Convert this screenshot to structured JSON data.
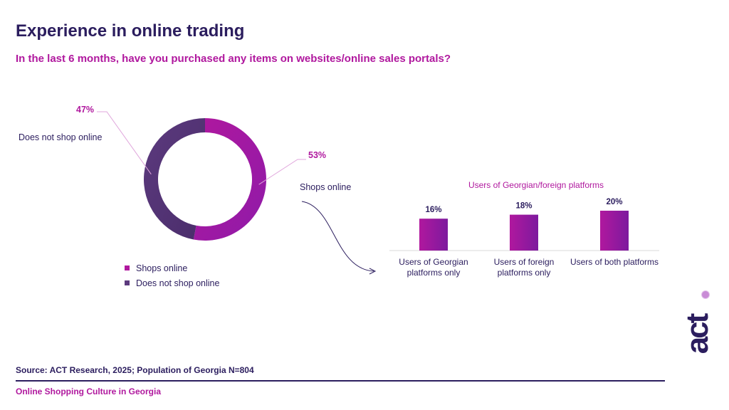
{
  "header": {
    "title": "Experience in online trading",
    "subtitle": "In the last 6 months, have you purchased any items on websites/online sales portals?"
  },
  "donut_labels": {
    "shops_online": "Shops online",
    "does_not_shop": "Does not shop online",
    "shops_pct": "53%",
    "not_pct": "47%"
  },
  "legend": [
    {
      "label": "Shops online",
      "color": "#b0189e"
    },
    {
      "label": "Does not shop online",
      "color": "#5c3a7e"
    }
  ],
  "bar_section": {
    "title": "Users of Georgian/foreign platforms"
  },
  "footer": {
    "source": "Source: ACT Research, 2025; Population of Georgia N=804",
    "note": "Online Shopping Culture in Georgia"
  },
  "logo": {
    "text": "act"
  },
  "chart_data": [
    {
      "type": "pie",
      "variant": "donut",
      "categories": [
        "Shops online",
        "Does not shop online"
      ],
      "values": [
        53,
        47
      ],
      "colors": [
        "#b0189e",
        "#5c3a7e"
      ],
      "legend": "bottom"
    },
    {
      "type": "bar",
      "title": "Users of Georgian/foreign platforms",
      "categories": [
        "Users of Georgian platforms only",
        "Users of foreign platforms only",
        "Users of both platforms"
      ],
      "category_lines": [
        [
          "Users of Georgian",
          "platforms only"
        ],
        [
          "Users of foreign",
          "platforms only"
        ],
        [
          "Users of both platforms"
        ]
      ],
      "values": [
        16,
        18,
        20
      ],
      "value_labels": [
        "16%",
        "18%",
        "20%"
      ],
      "ylim": [
        0,
        20
      ],
      "color": "#b0189e",
      "grid": false
    }
  ]
}
